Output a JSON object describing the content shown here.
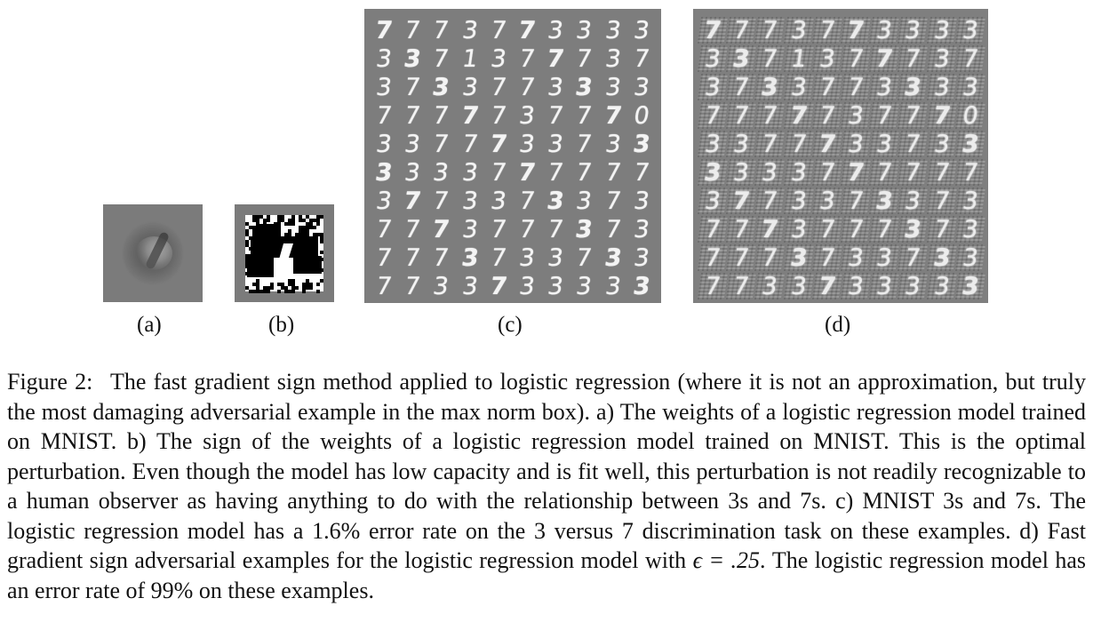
{
  "figure": {
    "panel_labels": {
      "a": "(a)",
      "b": "(b)",
      "c": "(c)",
      "d": "(d)"
    },
    "grid_c": [
      "7773773333",
      "3371377737",
      "3733773333",
      "7777737770",
      "3377733733",
      "3333777777",
      "3773373373",
      "7773777373",
      "7773733733",
      "7733733333"
    ],
    "grid_d": [
      "7773773333",
      "3371377737",
      "3733773333",
      "7777737770",
      "3377733733",
      "3333777777",
      "3773373373",
      "7773777373",
      "7773733733",
      "7733733333"
    ]
  },
  "caption": {
    "label": "Figure 2:",
    "text_before_math": "The fast gradient sign method applied to logistic regression (where it is not an approximation, but truly the most damaging adversarial example in the max norm box). a) The weights of a logistic regression model trained on MNIST. b) The sign of the weights of a logistic regression model trained on MNIST. This is the optimal perturbation. Even though the model has low capacity and is fit well, this perturbation is not readily recognizable to a human observer as having anything to do with the relationship between 3s and 7s. c) MNIST 3s and 7s. The logistic regression model has a 1.6% error rate on the 3 versus 7 discrimination task on these examples. d) Fast gradient sign adversarial examples for the logistic regression model with",
    "math": "ϵ = .25",
    "text_after_math": ". The logistic regression model has an error rate of 99% on these examples."
  }
}
